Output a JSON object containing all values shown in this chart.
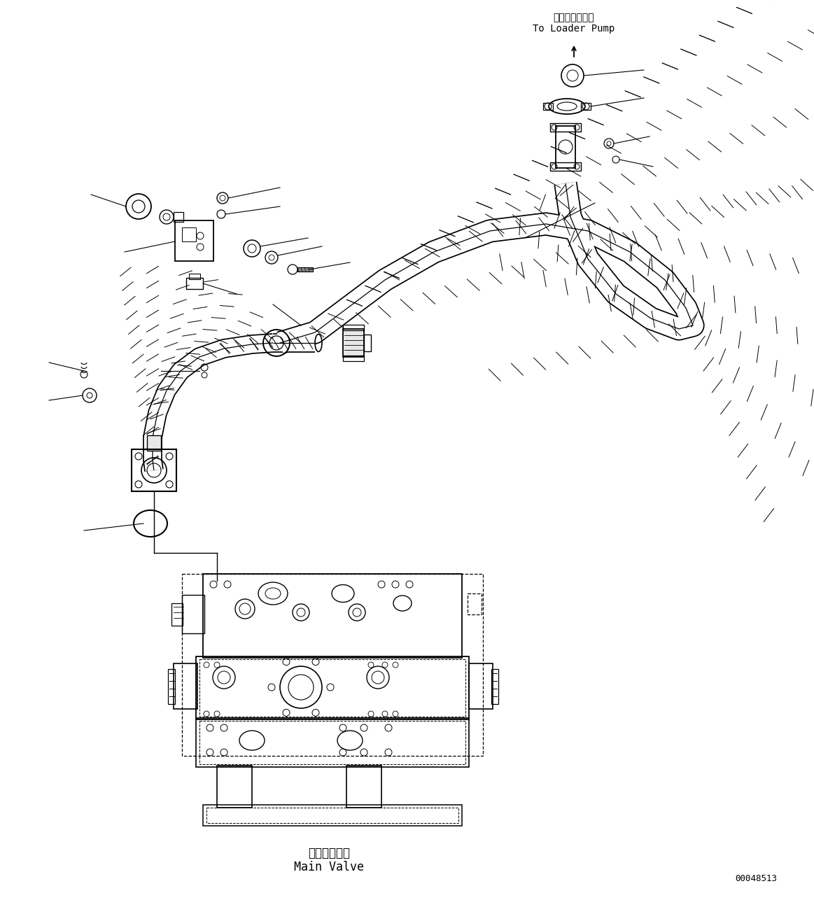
{
  "background_color": "#ffffff",
  "line_color": "#000000",
  "label_top_jp": "ローダポンプへ",
  "label_top_en": "To Loader Pump",
  "label_bottom_jp": "メインバルブ",
  "label_bottom_en": "Main Valve",
  "watermark": "00048513",
  "fig_width": 11.63,
  "fig_height": 12.86,
  "dpi": 100
}
